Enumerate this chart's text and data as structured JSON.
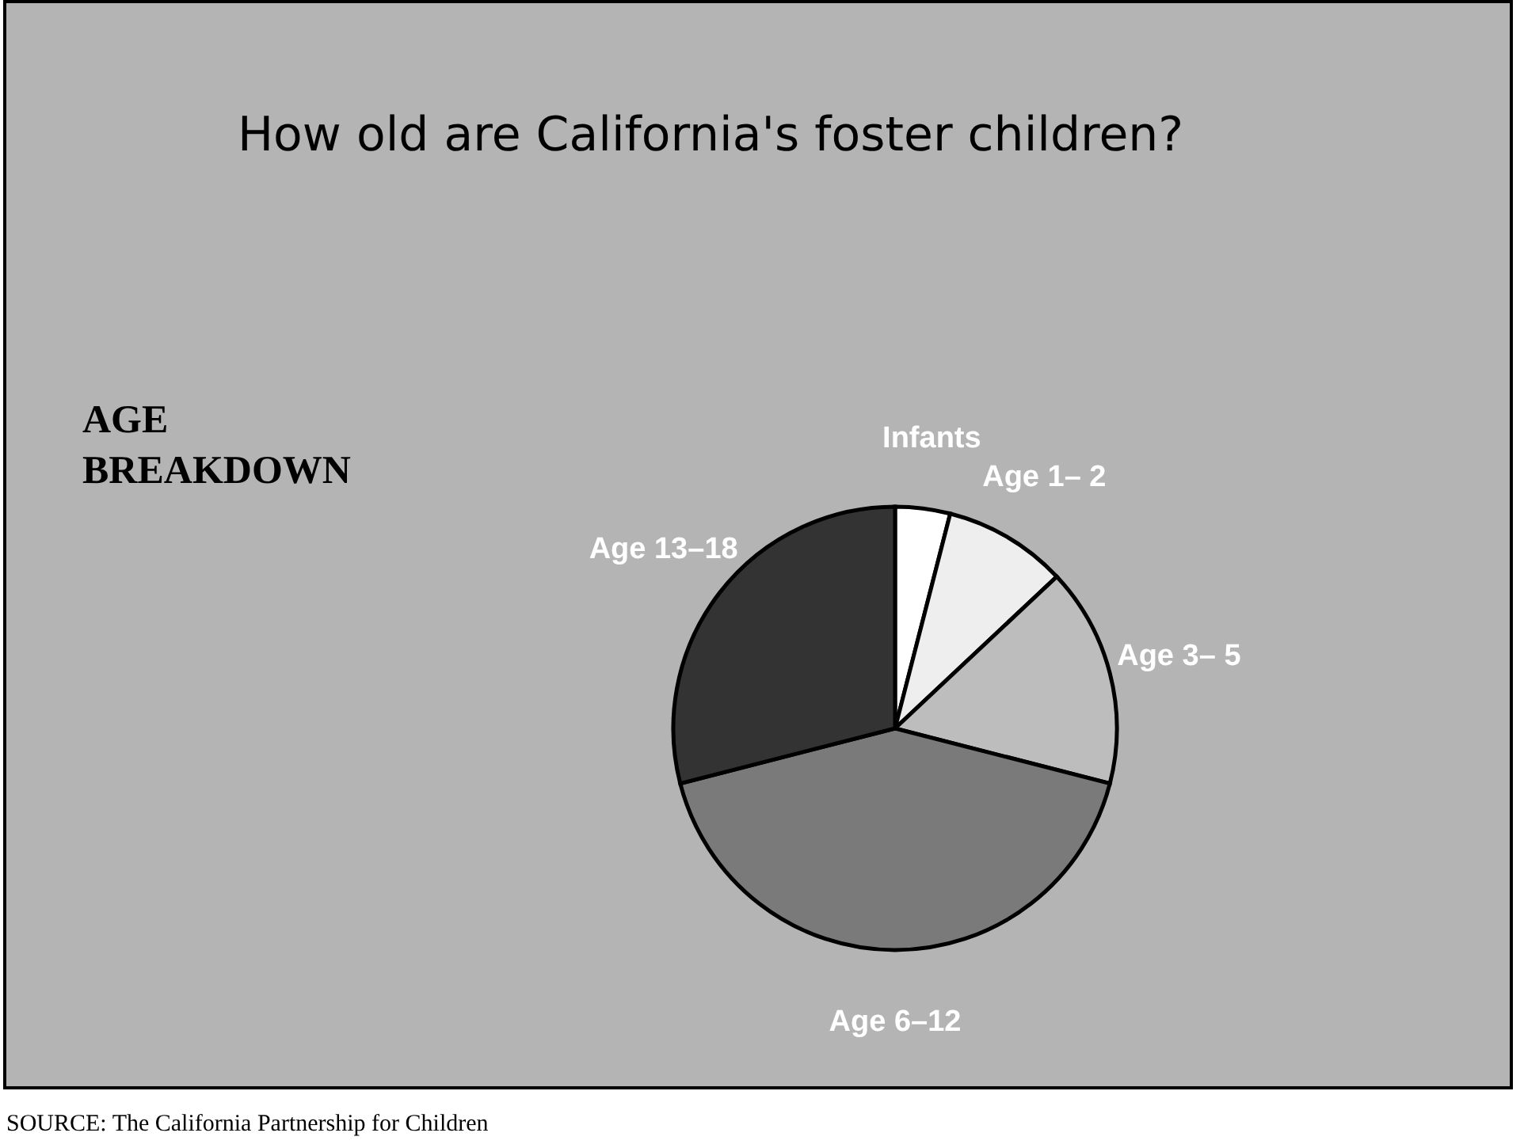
{
  "chart_data": {
    "type": "pie",
    "title": "How old are California's foster children?",
    "subtitle": "AGE BREAKDOWN",
    "categories": [
      "Infants",
      "Age 1– 2",
      "Age 3– 5",
      "Age 6–12",
      "Age 13–18"
    ],
    "values": [
      4,
      9,
      16,
      42,
      29
    ],
    "colors": [
      "#ffffff",
      "#eeeeee",
      "#bdbdbd",
      "#7a7a7a",
      "#333333"
    ],
    "annotations": [
      "SOURCE: The California Partnership for Children"
    ]
  }
}
